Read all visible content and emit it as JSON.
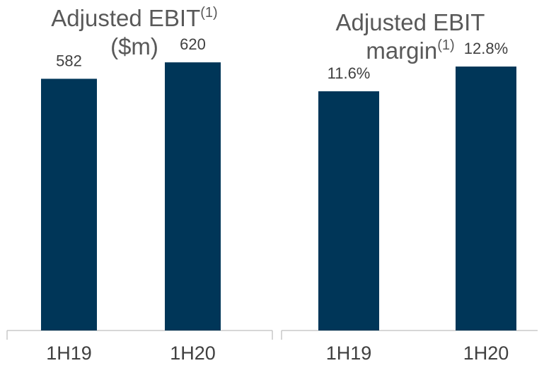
{
  "chart_data": [
    {
      "type": "bar",
      "title": "Adjusted EBIT",
      "title_sup": "(1)",
      "subtitle": "($m)",
      "categories": [
        "1H19",
        "1H20"
      ],
      "values": [
        582,
        620
      ],
      "value_labels": [
        "582",
        "620"
      ],
      "ylim": [
        0,
        720
      ],
      "grid": false,
      "color": "#003658"
    },
    {
      "type": "bar",
      "title": "Adjusted EBIT",
      "title_line2": "margin",
      "title_sup": "(1)",
      "categories": [
        "1H19",
        "1H20"
      ],
      "values": [
        11.6,
        12.8
      ],
      "value_labels": [
        "11.6%",
        "12.8%"
      ],
      "ylim": [
        0,
        15.1
      ],
      "grid": false,
      "color": "#003658"
    }
  ]
}
